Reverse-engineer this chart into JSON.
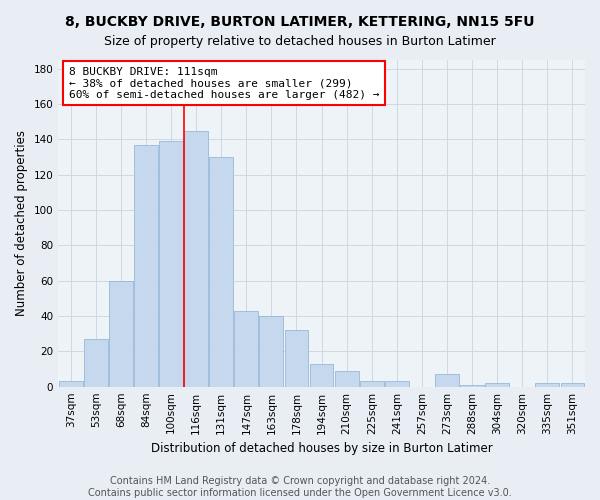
{
  "title": "8, BUCKBY DRIVE, BURTON LATIMER, KETTERING, NN15 5FU",
  "subtitle": "Size of property relative to detached houses in Burton Latimer",
  "xlabel": "Distribution of detached houses by size in Burton Latimer",
  "ylabel": "Number of detached properties",
  "categories": [
    "37sqm",
    "53sqm",
    "68sqm",
    "84sqm",
    "100sqm",
    "116sqm",
    "131sqm",
    "147sqm",
    "163sqm",
    "178sqm",
    "194sqm",
    "210sqm",
    "225sqm",
    "241sqm",
    "257sqm",
    "273sqm",
    "288sqm",
    "304sqm",
    "320sqm",
    "335sqm",
    "351sqm"
  ],
  "values": [
    3,
    27,
    60,
    137,
    139,
    145,
    130,
    43,
    40,
    32,
    13,
    9,
    3,
    3,
    0,
    7,
    1,
    2,
    0,
    2,
    2
  ],
  "bar_color": "#c5d8ee",
  "bar_edge_color": "#8ab0d4",
  "redline_x": 4.5,
  "annotation_text": "8 BUCKBY DRIVE: 111sqm\n← 38% of detached houses are smaller (299)\n60% of semi-detached houses are larger (482) →",
  "annotation_box_color": "white",
  "annotation_box_edge_color": "red",
  "ylim": [
    0,
    185
  ],
  "yticks": [
    0,
    20,
    40,
    60,
    80,
    100,
    120,
    140,
    160,
    180
  ],
  "footer1": "Contains HM Land Registry data © Crown copyright and database right 2024.",
  "footer2": "Contains public sector information licensed under the Open Government Licence v3.0.",
  "background_color": "#e8eef4",
  "plot_background_color": "#eef3f8",
  "title_fontsize": 10,
  "subtitle_fontsize": 9,
  "xlabel_fontsize": 8.5,
  "ylabel_fontsize": 8.5,
  "tick_fontsize": 7.5,
  "annotation_fontsize": 8,
  "footer_fontsize": 7
}
